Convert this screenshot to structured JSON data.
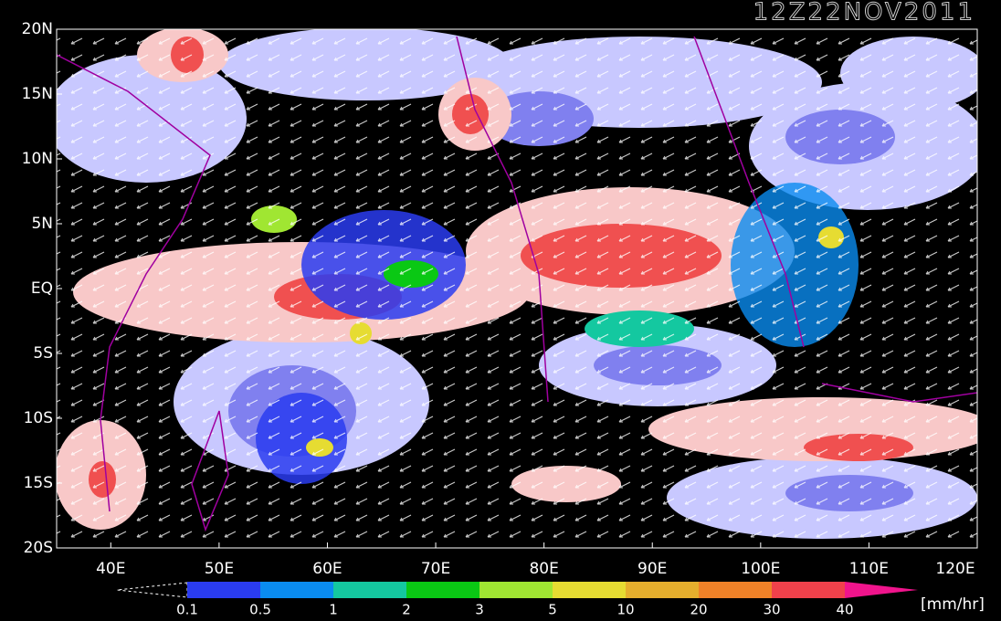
{
  "title": "12Z22NOV2011",
  "map": {
    "lat_labels": [
      "20N",
      "15N",
      "10N",
      "5N",
      "EQ",
      "5S",
      "10S",
      "15S",
      "20S"
    ],
    "lon_labels": [
      "40E",
      "50E",
      "60E",
      "70E",
      "80E",
      "90E",
      "100E",
      "110E",
      "120E"
    ]
  },
  "colorbar": {
    "labels": [
      "0.1",
      "0.5",
      "1",
      "2",
      "3",
      "5",
      "10",
      "20",
      "30",
      "40"
    ],
    "colors": [
      "#2a3cf0",
      "#0a8cf0",
      "#14c8a0",
      "#0ac814",
      "#a0e632",
      "#e6dc32",
      "#e6af2d",
      "#f08228",
      "#f0414b"
    ],
    "over_color": "#f0148c",
    "unit": "[mm/hr]"
  }
}
